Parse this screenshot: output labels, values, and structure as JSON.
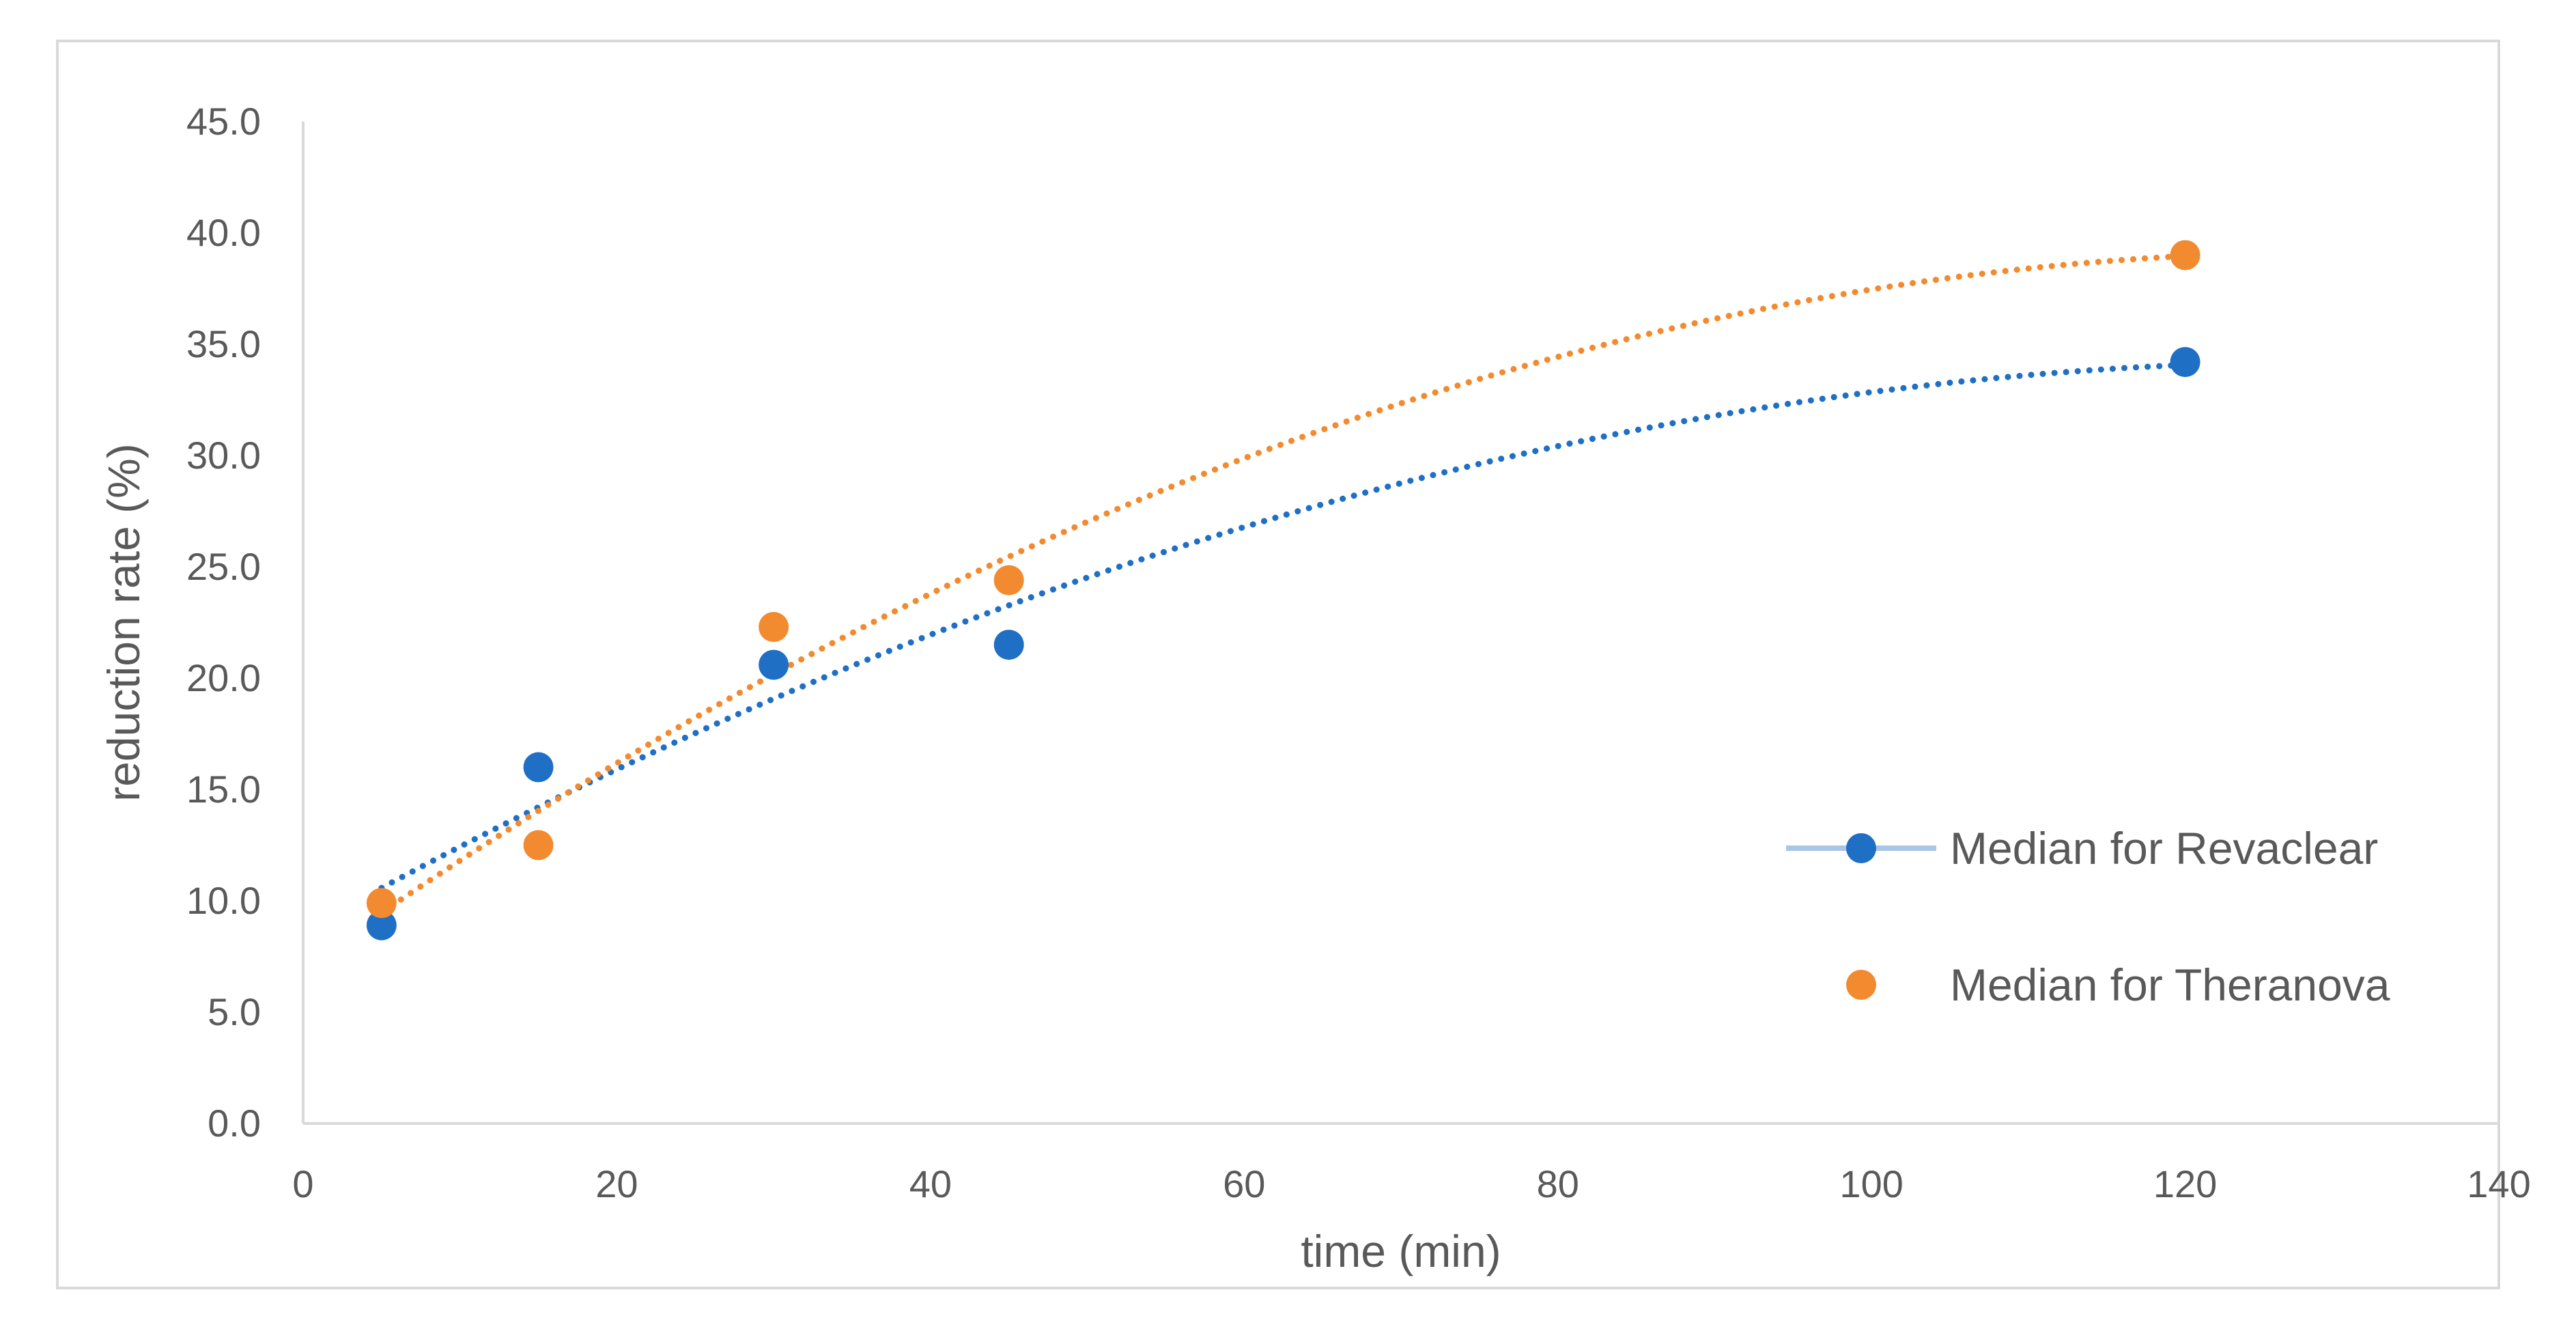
{
  "chart_data": {
    "type": "scatter",
    "title": "",
    "xlabel": "time (min)",
    "ylabel": "reduction rate (%)",
    "xlim": [
      0,
      140
    ],
    "ylim": [
      0,
      45
    ],
    "x_ticks": [
      0,
      20,
      40,
      60,
      80,
      100,
      120,
      140
    ],
    "y_ticks": [
      "0.0",
      "5.0",
      "10.0",
      "15.0",
      "20.0",
      "25.0",
      "30.0",
      "35.0",
      "40.0",
      "45.0"
    ],
    "grid": false,
    "legend_position": "right",
    "trendline": "polynomial (dotted)",
    "series": [
      {
        "name": "Median for Revaclear",
        "color": "#1f6fc5",
        "x": [
          5,
          15,
          30,
          45,
          120
        ],
        "y": [
          8.9,
          16.0,
          20.6,
          21.5,
          34.2
        ]
      },
      {
        "name": "Median for Theranova",
        "color": "#f28a30",
        "x": [
          5,
          15,
          30,
          45,
          120
        ],
        "y": [
          9.9,
          12.5,
          22.3,
          24.4,
          39.0
        ]
      }
    ]
  }
}
